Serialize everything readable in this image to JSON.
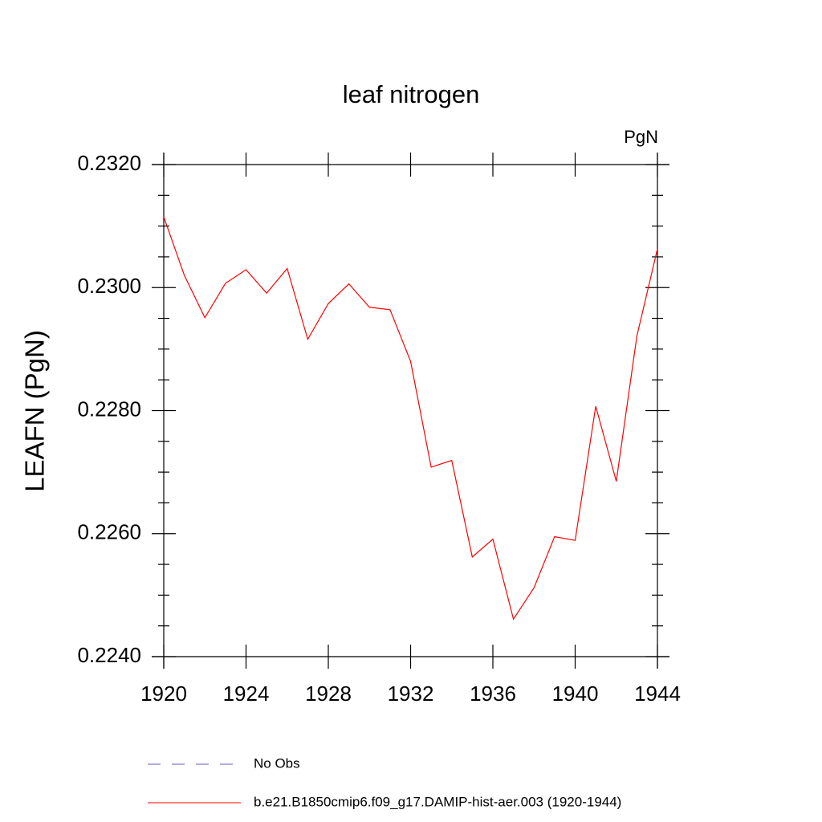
{
  "chart_data": {
    "type": "line",
    "title": "leaf nitrogen",
    "units_label": "PgN",
    "y_label": "LEAFN  (PgN)",
    "x": [
      1920,
      1921,
      1922,
      1923,
      1924,
      1925,
      1926,
      1927,
      1928,
      1929,
      1930,
      1931,
      1932,
      1933,
      1934,
      1935,
      1936,
      1937,
      1938,
      1939,
      1940,
      1941,
      1942,
      1943,
      1944
    ],
    "series": [
      {
        "name": "b.e21.B1850cmip6.f09_g17.DAMIP-hist-aer.003 (1920-1944)",
        "color": "#ff0000",
        "values": [
          0.23115,
          0.2302,
          0.22951,
          0.23007,
          0.23029,
          0.22991,
          0.23031,
          0.22916,
          0.22974,
          0.23006,
          0.22968,
          0.22964,
          0.2288,
          0.22708,
          0.22719,
          0.22562,
          0.22591,
          0.22461,
          0.22512,
          0.22595,
          0.22589,
          0.22807,
          0.22685,
          0.22921,
          0.23063
        ]
      }
    ],
    "legend_extra": [
      {
        "name": "No Obs",
        "color": "#6a5acd",
        "dash": true
      }
    ],
    "xlim": [
      1920,
      1944
    ],
    "xticks": [
      1920,
      1924,
      1928,
      1932,
      1936,
      1940,
      1944
    ],
    "ylim": [
      0.224,
      0.232
    ],
    "yticks": [
      {
        "value": 0.224,
        "label": "0.2240"
      },
      {
        "value": 0.226,
        "label": "0.2260"
      },
      {
        "value": 0.228,
        "label": "0.2280"
      },
      {
        "value": 0.23,
        "label": "0.2300"
      },
      {
        "value": 0.232,
        "label": "0.2320"
      }
    ],
    "yminorticks": [
      0.2245,
      0.225,
      0.2255,
      0.2265,
      0.227,
      0.2275,
      0.2285,
      0.229,
      0.2295,
      0.2305,
      0.231,
      0.2315
    ]
  }
}
